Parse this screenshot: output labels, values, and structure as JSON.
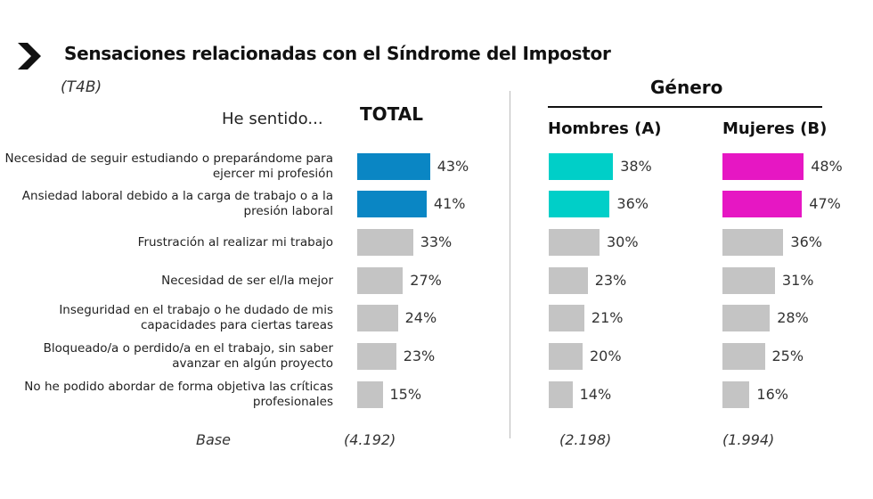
{
  "title": "Sensaciones relacionadas con el Síndrome del Impostor",
  "code": "(T4B)",
  "lead": "He sentido...",
  "group_header": "Género",
  "base_label": "Base",
  "colors": {
    "total": "#0a86c4",
    "hombres": "#00cfc8",
    "mujeres": "#e617c3",
    "other": "#c4c4c4"
  },
  "chart_data": {
    "type": "bar",
    "orientation": "horizontal",
    "categories": [
      "Necesidad de seguir estudiando o preparándome para ejercer mi profesión",
      "Ansiedad laboral debido a la carga de trabajo o a la presión laboral",
      "Frustración al realizar mi trabajo",
      "Necesidad de ser el/la mejor",
      "Inseguridad en el trabajo o he dudado de mis capacidades para ciertas tareas",
      "Bloqueado/a o perdido/a en el trabajo, sin saber avanzar en algún proyecto",
      "No he podido abordar de forma objetiva las críticas profesionales"
    ],
    "series": [
      {
        "name": "TOTAL",
        "key": "total",
        "values": [
          43,
          41,
          33,
          27,
          24,
          23,
          15
        ],
        "base": "(4.192)"
      },
      {
        "name": "Hombres (A)",
        "key": "hombres",
        "values": [
          38,
          36,
          30,
          23,
          21,
          20,
          14
        ],
        "base": "(2.198)"
      },
      {
        "name": "Mujeres (B)",
        "key": "mujeres",
        "values": [
          48,
          47,
          36,
          31,
          28,
          25,
          16
        ],
        "base": "(1.994)"
      }
    ],
    "highlighted_rows": 2,
    "unit": "%"
  }
}
